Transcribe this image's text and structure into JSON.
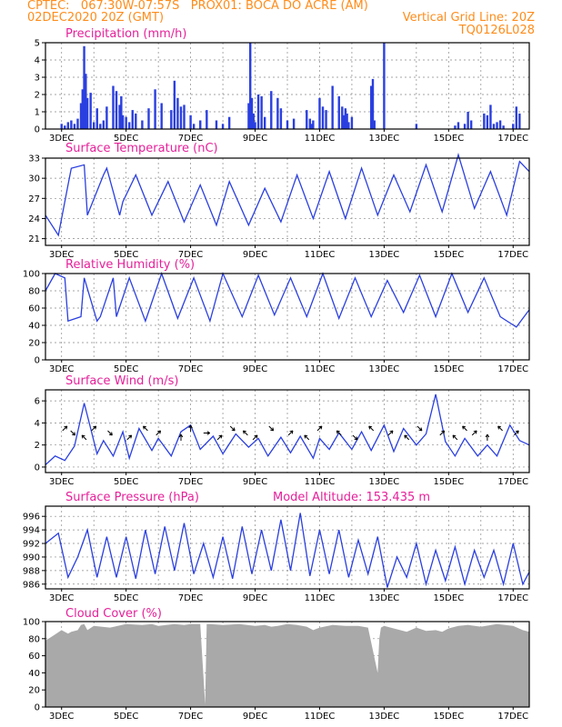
{
  "header": {
    "line1_left": "CPTEC:   067:30W-07:57S   PROX01: BOCA DO ACRE (AM)",
    "line2_left": "02DEC2020 20Z (GMT)",
    "line2_right": "Vertical Grid Line: 20Z",
    "line3_right": "TQ0126L028"
  },
  "colors": {
    "series": "#2a3fe0",
    "cloud": "#a9a9a9",
    "title": "#e6209a",
    "header": "#ff8c1a",
    "arrow": "#000000"
  },
  "x_axis": {
    "labels": [
      "3DEC",
      "5DEC",
      "7DEC",
      "9DEC",
      "11DEC",
      "13DEC",
      "15DEC",
      "17DEC"
    ],
    "label_days": [
      3,
      5,
      7,
      9,
      11,
      13,
      15,
      17
    ],
    "range_days": [
      2.5,
      17.5
    ]
  },
  "panels": {
    "precip": {
      "title": "Precipitation (mm/h)",
      "ylim": [
        0,
        5
      ],
      "yticks": [
        0,
        1,
        2,
        3,
        4,
        5
      ]
    },
    "temp": {
      "title": "Surface Temperature (nC)",
      "ylim": [
        20,
        33
      ],
      "yticks": [
        21,
        24,
        27,
        30,
        33
      ]
    },
    "rh": {
      "title": "Relative Humidity (%)",
      "ylim": [
        0,
        100
      ],
      "yticks": [
        0,
        20,
        40,
        60,
        80,
        100
      ]
    },
    "wind": {
      "title": "Surface Wind (m/s)",
      "ylim": [
        -0.5,
        7
      ],
      "yticks": [
        0,
        2,
        4,
        6
      ]
    },
    "pressure": {
      "title": "Surface Pressure (hPa)",
      "subtitle": "Model Altitude: 153.435 m",
      "ylim": [
        985.3,
        997.5
      ],
      "yticks": [
        986,
        988,
        990,
        992,
        994,
        996
      ]
    },
    "cloud": {
      "title": "Cloud Cover (%)",
      "ylim": [
        0,
        100
      ],
      "yticks": [
        0,
        20,
        40,
        60,
        80,
        100
      ]
    }
  },
  "chart_data": [
    {
      "type": "bar",
      "title": "Precipitation (mm/h)",
      "ylim": [
        0,
        5
      ],
      "x": [
        3.0,
        3.1,
        3.2,
        3.3,
        3.4,
        3.5,
        3.6,
        3.65,
        3.7,
        3.75,
        3.8,
        3.9,
        4.0,
        4.1,
        4.2,
        4.3,
        4.4,
        4.6,
        4.7,
        4.8,
        4.85,
        4.9,
        5.0,
        5.1,
        5.2,
        5.3,
        5.5,
        5.7,
        5.9,
        6.1,
        6.4,
        6.5,
        6.6,
        6.7,
        6.8,
        7.0,
        7.1,
        7.3,
        7.5,
        7.8,
        8.0,
        8.2,
        8.8,
        8.85,
        8.9,
        8.95,
        9.0,
        9.1,
        9.2,
        9.3,
        9.5,
        9.7,
        9.8,
        10.0,
        10.2,
        10.6,
        10.7,
        10.75,
        10.8,
        11.0,
        11.1,
        11.2,
        11.4,
        11.6,
        11.7,
        11.75,
        11.8,
        11.85,
        11.9,
        12.0,
        12.6,
        12.65,
        12.7,
        13.0,
        14.0,
        15.2,
        15.3,
        15.5,
        15.6,
        15.7,
        16.1,
        16.2,
        16.3,
        16.4,
        16.5,
        16.6,
        16.7,
        17.0,
        17.1,
        17.2
      ],
      "values": [
        0.3,
        0.2,
        0.4,
        0.5,
        0.3,
        0.6,
        1.5,
        2.3,
        4.8,
        3.2,
        1.8,
        2.1,
        0.4,
        1.2,
        0.3,
        0.5,
        1.3,
        2.5,
        2.2,
        1.4,
        1.9,
        0.8,
        0.7,
        0.4,
        1.1,
        0.9,
        0.5,
        1.2,
        2.3,
        1.5,
        1.1,
        2.8,
        1.8,
        1.3,
        1.4,
        0.8,
        0.3,
        0.5,
        1.1,
        0.5,
        0.3,
        0.7,
        1.5,
        5.0,
        1.8,
        0.9,
        0.4,
        2.0,
        1.9,
        0.7,
        2.2,
        1.8,
        1.2,
        0.5,
        0.6,
        1.1,
        0.6,
        0.3,
        0.5,
        1.8,
        1.3,
        1.1,
        2.5,
        1.9,
        1.3,
        0.8,
        1.2,
        0.9,
        0.4,
        0.7,
        2.5,
        2.9,
        0.5,
        5.0,
        0.3,
        0.2,
        0.4,
        0.3,
        1.0,
        0.5,
        0.9,
        0.8,
        1.4,
        0.3,
        0.4,
        0.5,
        0.2,
        0.3,
        1.3,
        0.9
      ]
    },
    {
      "type": "line",
      "title": "Surface Temperature (nC)",
      "ylim": [
        20,
        33
      ],
      "x": [
        2.5,
        2.9,
        3.2,
        3.3,
        3.7,
        3.8,
        4.3,
        4.4,
        4.8,
        4.9,
        5.3,
        5.8,
        6.3,
        6.8,
        7.3,
        7.8,
        8.2,
        8.8,
        9.3,
        9.8,
        10.3,
        10.8,
        11.3,
        11.8,
        12.3,
        12.8,
        13.3,
        13.8,
        14.3,
        14.8,
        15.3,
        15.8,
        16.3,
        16.8,
        17.2,
        17.5
      ],
      "values": [
        24.5,
        21.5,
        29,
        31.5,
        32,
        24.5,
        30.5,
        31.5,
        24.5,
        26.5,
        30.5,
        24.5,
        29.5,
        23.5,
        29,
        23,
        29.5,
        23,
        28.5,
        23.5,
        30.5,
        24,
        31,
        24,
        31.5,
        24.5,
        30.5,
        25,
        32,
        25,
        33.5,
        25.5,
        31,
        24.5,
        32.5,
        31
      ]
    },
    {
      "type": "line",
      "title": "Relative Humidity (%)",
      "ylim": [
        0,
        100
      ],
      "x": [
        2.5,
        2.8,
        3.1,
        3.2,
        3.6,
        3.7,
        4.1,
        4.2,
        4.6,
        4.7,
        5.1,
        5.6,
        6.1,
        6.6,
        7.1,
        7.6,
        8.0,
        8.6,
        9.1,
        9.6,
        10.1,
        10.6,
        11.1,
        11.6,
        12.1,
        12.6,
        13.1,
        13.6,
        14.1,
        14.6,
        15.1,
        15.6,
        16.1,
        16.6,
        17.1,
        17.5
      ],
      "values": [
        80,
        100,
        95,
        45,
        50,
        95,
        45,
        50,
        95,
        50,
        95,
        45,
        100,
        48,
        95,
        45,
        100,
        50,
        98,
        52,
        95,
        50,
        100,
        48,
        95,
        50,
        92,
        55,
        98,
        50,
        100,
        55,
        95,
        50,
        38,
        58
      ]
    },
    {
      "type": "line",
      "title": "Surface Wind (m/s)",
      "ylim": [
        -0.5,
        7
      ],
      "x": [
        2.5,
        2.8,
        3.1,
        3.4,
        3.7,
        3.9,
        4.1,
        4.3,
        4.6,
        4.9,
        5.1,
        5.4,
        5.8,
        6.0,
        6.4,
        6.7,
        7.0,
        7.3,
        7.7,
        8.0,
        8.4,
        8.8,
        9.1,
        9.4,
        9.8,
        10.1,
        10.4,
        10.8,
        11.0,
        11.3,
        11.6,
        12.0,
        12.3,
        12.6,
        13.0,
        13.3,
        13.6,
        14.0,
        14.3,
        14.6,
        14.9,
        15.2,
        15.5,
        15.9,
        16.2,
        16.5,
        16.9,
        17.2,
        17.5
      ],
      "values": [
        0.2,
        1.0,
        0.6,
        1.9,
        5.8,
        3.5,
        1.2,
        2.4,
        1.0,
        3.2,
        0.8,
        3.5,
        1.5,
        2.6,
        1.0,
        3.2,
        3.8,
        1.6,
        2.8,
        1.2,
        3.0,
        1.8,
        2.6,
        1.0,
        2.7,
        1.3,
        2.8,
        0.8,
        2.6,
        1.6,
        3.1,
        1.6,
        3.2,
        1.5,
        3.8,
        1.4,
        3.5,
        2.0,
        3.0,
        6.6,
        2.3,
        1.0,
        2.6,
        1.0,
        2.0,
        1.0,
        3.8,
        2.4,
        2.0
      ],
      "arrow_x": [
        3.1,
        3.35,
        3.7,
        4.0,
        4.5,
        5.1,
        5.6,
        6.0,
        6.7,
        7.0,
        7.5,
        7.9,
        8.3,
        8.7,
        9.0,
        9.5,
        10.1,
        10.6,
        11.0,
        11.6,
        12.1,
        12.6,
        13.2,
        13.7,
        14.1,
        14.8,
        15.2,
        15.5,
        15.8,
        16.2,
        16.6,
        17.1
      ],
      "arrow_dir_deg": [
        45,
        135,
        315,
        45,
        135,
        45,
        315,
        45,
        0,
        0,
        90,
        45,
        135,
        315,
        45,
        135,
        45,
        315,
        45,
        315,
        135,
        315,
        45,
        315,
        135,
        45,
        315,
        315,
        45,
        0,
        315,
        45
      ]
    },
    {
      "type": "line",
      "title": "Surface Pressure (hPa)",
      "ylim": [
        985.3,
        997.5
      ],
      "x": [
        2.5,
        2.9,
        3.2,
        3.5,
        3.8,
        4.1,
        4.4,
        4.7,
        5.0,
        5.3,
        5.6,
        5.9,
        6.2,
        6.5,
        6.8,
        7.1,
        7.4,
        7.7,
        8.0,
        8.3,
        8.6,
        8.9,
        9.2,
        9.5,
        9.8,
        10.1,
        10.4,
        10.7,
        11.0,
        11.3,
        11.6,
        11.9,
        12.2,
        12.5,
        12.8,
        13.1,
        13.4,
        13.7,
        14.0,
        14.3,
        14.6,
        14.9,
        15.2,
        15.5,
        15.8,
        16.1,
        16.4,
        16.7,
        17.0,
        17.3,
        17.5
      ],
      "values": [
        992,
        993.5,
        987,
        990,
        994,
        987,
        993,
        987,
        993,
        986.8,
        994,
        987.5,
        994.5,
        988,
        995,
        987.5,
        992,
        987,
        993,
        986.8,
        994.5,
        987.5,
        994,
        988,
        995.5,
        988,
        996.5,
        987.2,
        994,
        987.5,
        994,
        987,
        992.5,
        987.5,
        993,
        985.5,
        990,
        987,
        992,
        986,
        991,
        986.5,
        991.5,
        986,
        991,
        987,
        991,
        986,
        992,
        986,
        987.8
      ]
    },
    {
      "type": "area",
      "title": "Cloud Cover (%)",
      "ylim": [
        0,
        100
      ],
      "x": [
        2.5,
        2.6,
        2.8,
        3.0,
        3.2,
        3.3,
        3.5,
        3.6,
        3.7,
        3.8,
        4.0,
        4.5,
        5.0,
        5.5,
        5.8,
        6.0,
        6.5,
        6.8,
        7.0,
        7.3,
        7.45,
        7.5,
        7.6,
        8.0,
        8.5,
        9.0,
        9.3,
        9.5,
        9.7,
        10.0,
        10.3,
        10.6,
        10.8,
        11.0,
        11.4,
        11.8,
        12.2,
        12.5,
        12.8,
        12.85,
        12.9,
        13.0,
        13.5,
        13.7,
        14.0,
        14.3,
        14.6,
        14.8,
        15.0,
        15.3,
        15.6,
        16.0,
        16.5,
        17.0,
        17.3,
        17.5
      ],
      "values": [
        78,
        80,
        85,
        90,
        86,
        88,
        90,
        96,
        97,
        90,
        95,
        93,
        97,
        96,
        97,
        95,
        97,
        96,
        97,
        97,
        3,
        97,
        97,
        96,
        97,
        95,
        96,
        94,
        95,
        97,
        96,
        94,
        90,
        93,
        96,
        95,
        95,
        93,
        40,
        80,
        93,
        95,
        90,
        88,
        93,
        89,
        90,
        88,
        92,
        95,
        96,
        94,
        97,
        95,
        90,
        88
      ]
    }
  ]
}
